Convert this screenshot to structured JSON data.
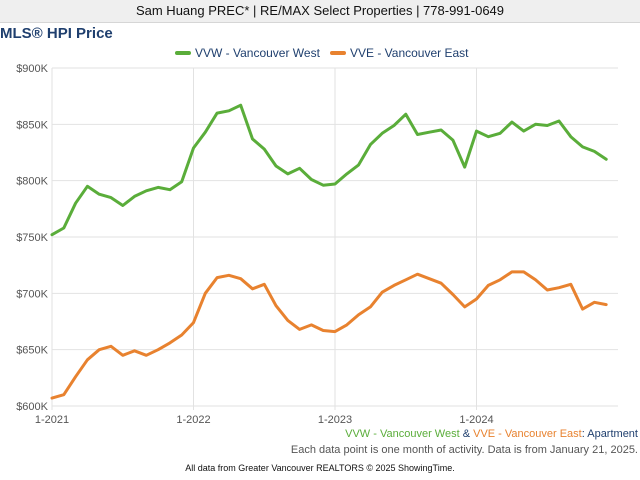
{
  "header": {
    "agent_line": "Sam Huang PREC* | RE/MAX Select Properties | 778-991-0649"
  },
  "colors": {
    "vvw": "#5aad3a",
    "vve": "#e8822f",
    "title": "#1f3f6e",
    "grid": "#e2e2e2",
    "axis_text": "#555555"
  },
  "chart_data": {
    "type": "line",
    "title": "MLS® HPI Price",
    "xlabel": "",
    "ylabel": "",
    "x_ticks": [
      "1-2021",
      "1-2022",
      "1-2023",
      "1-2024"
    ],
    "y_ticks": [
      "$600K",
      "$650K",
      "$700K",
      "$750K",
      "$800K",
      "$850K",
      "$900K"
    ],
    "ylim": [
      600000,
      900000
    ],
    "x_start": "2021-01",
    "months": 48,
    "grid": true,
    "legend_position": "top-center",
    "series": [
      {
        "name": "VVW - Vancouver West",
        "color": "#5aad3a",
        "values": [
          752000,
          758000,
          780000,
          795000,
          788000,
          785000,
          778000,
          786000,
          791000,
          794000,
          792000,
          799000,
          829000,
          843000,
          860000,
          862000,
          867000,
          837000,
          828000,
          813000,
          806000,
          811000,
          801000,
          796000,
          797000,
          806000,
          814000,
          832000,
          842000,
          849000,
          859000,
          841000,
          843000,
          845000,
          836000,
          812000,
          844000,
          839000,
          842000,
          852000,
          844000,
          850000,
          849000,
          853000,
          839000,
          830000,
          826000,
          819000
        ]
      },
      {
        "name": "VVE - Vancouver East",
        "color": "#e8822f",
        "values": [
          607000,
          610000,
          626000,
          641000,
          650000,
          653000,
          645000,
          649000,
          645000,
          650000,
          656000,
          663000,
          674000,
          700000,
          714000,
          716000,
          713000,
          704000,
          708000,
          689000,
          676000,
          668000,
          672000,
          667000,
          666000,
          672000,
          681000,
          688000,
          701000,
          707000,
          712000,
          717000,
          713000,
          709000,
          699000,
          688000,
          695000,
          707000,
          712000,
          719000,
          719000,
          712000,
          703000,
          705000,
          708000,
          686000,
          692000,
          690000
        ]
      }
    ]
  },
  "footer": {
    "series_note": {
      "vvw": "VVW - Vancouver West",
      "amp": " & ",
      "vve": "VVE - Vancouver East",
      "suffix": ": Apartment"
    },
    "data_note": "Each data point is one month of activity. Data is from January 21, 2025.",
    "credit": "All data from Greater Vancouver REALTORS © 2025 ShowingTime."
  }
}
